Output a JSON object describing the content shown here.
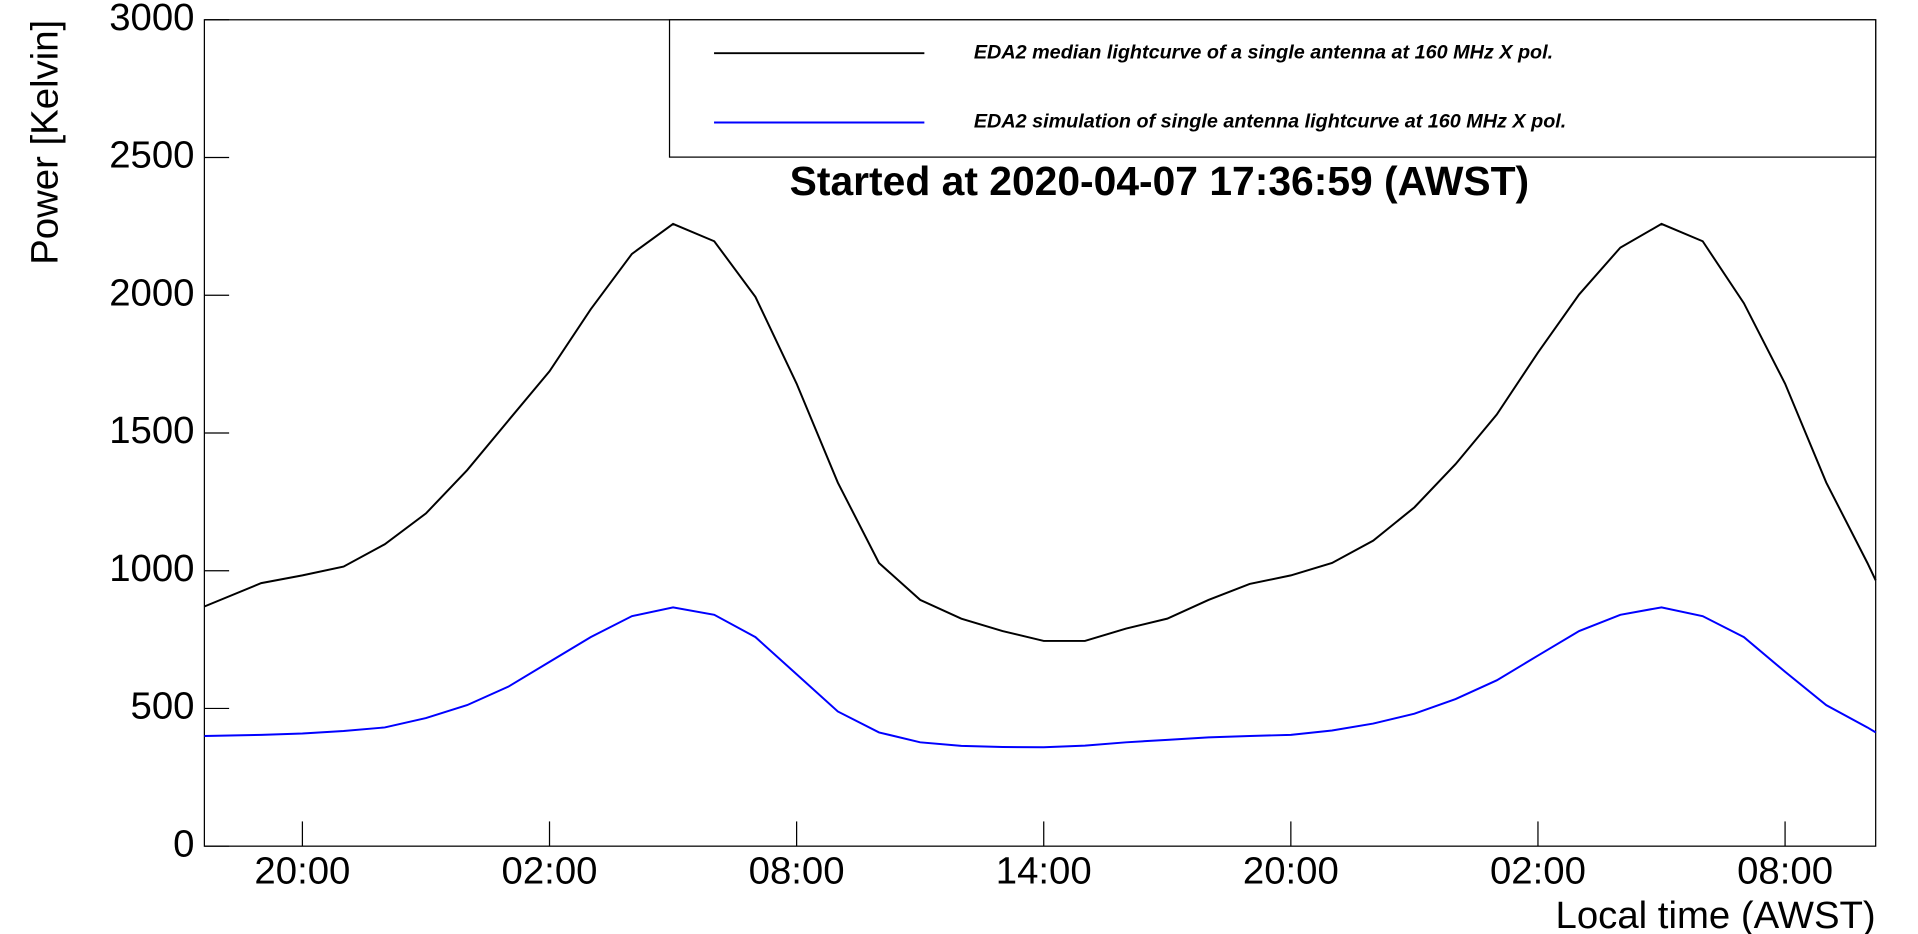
{
  "chart_data": {
    "type": "line",
    "title": "Started at 2020-04-07 17:36:59 (AWST)",
    "x_label": "Local time (AWST)",
    "y_label": "Power [Kelvin]",
    "x": [
      17.62,
      19,
      20,
      21,
      22,
      23,
      24,
      25,
      26,
      27,
      28,
      29,
      30,
      31,
      32,
      33,
      34,
      35,
      36,
      37,
      38,
      39,
      40,
      41,
      42,
      43,
      44,
      45,
      46,
      47,
      48,
      49,
      50,
      51,
      52,
      53,
      54,
      55,
      56,
      57,
      58,
      58.2
    ],
    "series": [
      {
        "name": "EDA2 median lightcurve of a single antenna at 160 MHz X pol.",
        "color": "#000000",
        "values": [
          870,
          955,
          983,
          1015,
          1096,
          1208,
          1365,
          1545,
          1724,
          1949,
          2150,
          2259,
          2196,
          1994,
          1679,
          1320,
          1028,
          894,
          826,
          781,
          745,
          745,
          790,
          826,
          894,
          952,
          983,
          1028,
          1109,
          1230,
          1387,
          1567,
          1792,
          2003,
          2173,
          2259,
          2196,
          1971,
          1679,
          1320,
          1028,
          965
        ]
      },
      {
        "name": "EDA2 simulation of single antenna lightcurve at 160 MHz X pol.",
        "color": "#0000ff",
        "values": [
          400,
          404,
          409,
          418,
          431,
          465,
          512,
          579,
          669,
          759,
          835,
          867,
          840,
          759,
          624,
          489,
          413,
          377,
          364,
          360,
          359,
          365,
          377,
          386,
          395,
          400,
          404,
          420,
          445,
          481,
          534,
          602,
          692,
          781,
          840,
          867,
          835,
          759,
          633,
          512,
          431,
          413
        ]
      }
    ],
    "xlim": [
      17.62,
      58.2
    ],
    "xticks": [
      {
        "value": 20,
        "label": "20:00"
      },
      {
        "value": 26,
        "label": "02:00"
      },
      {
        "value": 32,
        "label": "08:00"
      },
      {
        "value": 38,
        "label": "14:00"
      },
      {
        "value": 44,
        "label": "20:00"
      },
      {
        "value": 50,
        "label": "02:00"
      },
      {
        "value": 56,
        "label": "08:00"
      }
    ],
    "ylim": [
      0,
      3000
    ],
    "yticks": [
      0,
      500,
      1000,
      1500,
      2000,
      2500,
      3000
    ],
    "grid": false,
    "legend": "top-right"
  }
}
